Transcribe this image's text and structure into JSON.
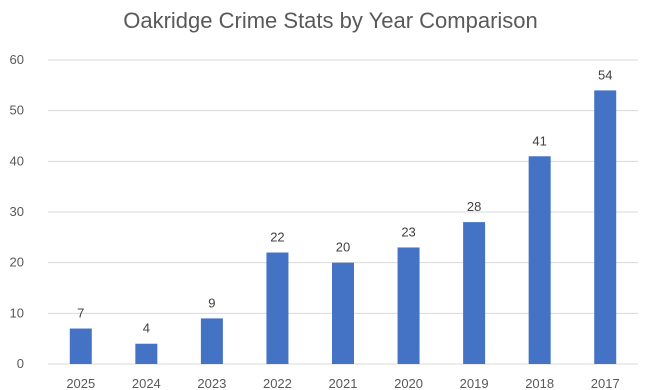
{
  "chart_data": {
    "type": "bar",
    "title": "Oakridge Crime Stats by Year Comparison",
    "categories": [
      "2025",
      "2024",
      "2023",
      "2022",
      "2021",
      "2020",
      "2019",
      "2018",
      "2017"
    ],
    "values": [
      7,
      4,
      9,
      22,
      20,
      23,
      28,
      41,
      54
    ],
    "data_labels": [
      "7",
      "4",
      "9",
      "22",
      "20",
      "23",
      "28",
      "41",
      "54"
    ],
    "xlabel": "",
    "ylabel": "",
    "ylim": [
      0,
      60
    ],
    "yticks": [
      0,
      10,
      20,
      30,
      40,
      50,
      60
    ],
    "ytick_labels": [
      "0",
      "10",
      "20",
      "30",
      "40",
      "50",
      "60"
    ],
    "grid": true,
    "legend": "none",
    "colors": {
      "bar": "#4472c4",
      "grid": "#d9d9d9",
      "text": "#595959"
    }
  }
}
